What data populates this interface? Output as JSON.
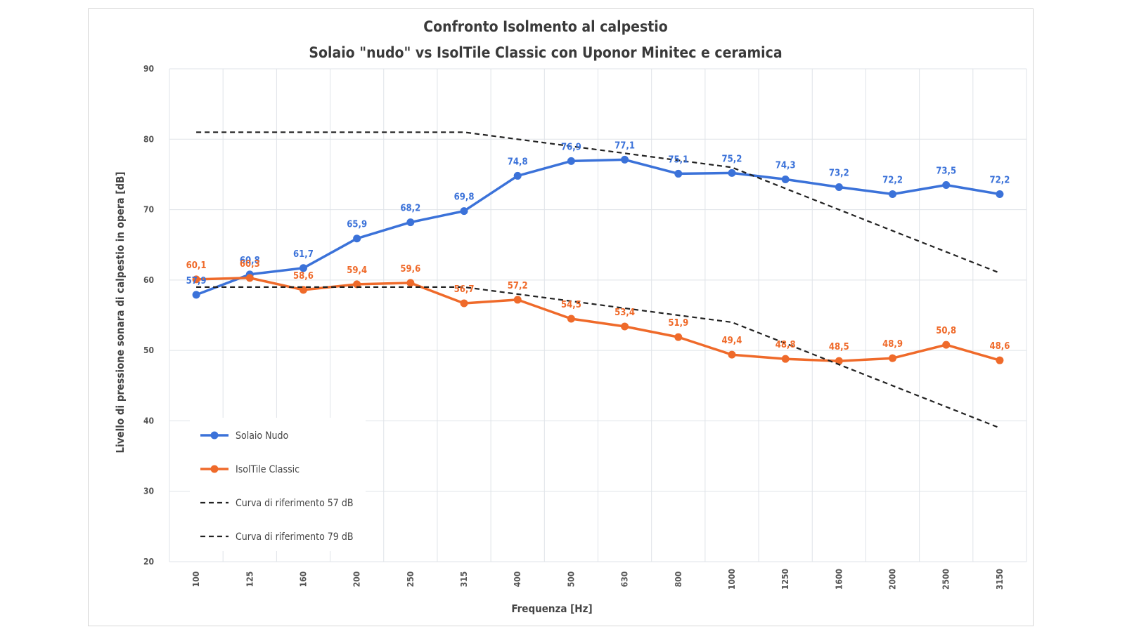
{
  "chart_data": {
    "type": "line",
    "title": "Confronto Isolmento al calpestio",
    "subtitle": "Solaio \"nudo\" vs IsolTile Classic con Uponor Minitec e ceramica",
    "xlabel": "Frequenza [Hz]",
    "ylabel": "Livello di pressione sonara di calpestio in opera [dB]",
    "categories": [
      "100",
      "125",
      "160",
      "200",
      "250",
      "315",
      "400",
      "500",
      "630",
      "800",
      "1000",
      "1250",
      "1600",
      "2000",
      "2500",
      "3150"
    ],
    "ylim": [
      20,
      90
    ],
    "yticks": [
      "20",
      "30",
      "40",
      "50",
      "60",
      "70",
      "80",
      "90"
    ],
    "grid": true,
    "legend_position": "bottom-left",
    "series": [
      {
        "name": "Solaio Nudo",
        "style": "solid-marker",
        "color": "#3b72d9",
        "values": [
          57.9,
          60.8,
          61.7,
          65.9,
          68.2,
          69.8,
          74.8,
          76.9,
          77.1,
          75.1,
          75.2,
          74.3,
          73.2,
          72.2,
          73.5,
          72.2
        ],
        "labels": [
          "57,9",
          "60,8",
          "61,7",
          "65,9",
          "68,2",
          "69,8",
          "74,8",
          "76,9",
          "77,1",
          "75,1",
          "75,2",
          "74,3",
          "73,2",
          "72,2",
          "73,5",
          "72,2"
        ]
      },
      {
        "name": "IsolTile Classic",
        "style": "solid-marker",
        "color": "#ef6a2a",
        "values": [
          60.1,
          60.3,
          58.6,
          59.4,
          59.6,
          56.7,
          57.2,
          54.5,
          53.4,
          51.9,
          49.4,
          48.8,
          48.5,
          48.9,
          50.8,
          48.6
        ],
        "labels": [
          "60,1",
          "60,3",
          "58,6",
          "59,4",
          "59,6",
          "56,7",
          "57,2",
          "54,5",
          "53,4",
          "51,9",
          "49,4",
          "48,8",
          "48,5",
          "48,9",
          "50,8",
          "48,6"
        ]
      },
      {
        "name": "Curva di riferimento 57 dB",
        "style": "dashed",
        "color": "#222222",
        "values": [
          59,
          59,
          59,
          59,
          59,
          59,
          58,
          57,
          56,
          55,
          54,
          51,
          48,
          45,
          42,
          39
        ]
      },
      {
        "name": "Curva di riferimento 79 dB",
        "style": "dashed",
        "color": "#222222",
        "values": [
          81,
          81,
          81,
          81,
          81,
          81,
          80,
          79,
          78,
          77,
          76,
          73,
          70,
          67,
          64,
          61
        ]
      }
    ]
  }
}
